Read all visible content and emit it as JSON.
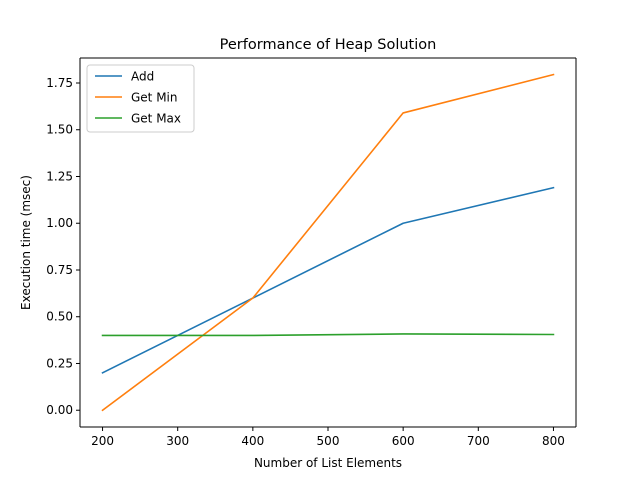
{
  "chart_data": {
    "type": "line",
    "title": "Performance of Heap Solution",
    "xlabel": "Number of List Elements",
    "ylabel": "Execution time (msec)",
    "x": [
      200,
      400,
      600,
      800
    ],
    "xlim": [
      170,
      830
    ],
    "ylim": [
      -0.0897,
      1.8837
    ],
    "xticks": [
      200,
      300,
      400,
      500,
      600,
      700,
      800
    ],
    "xtick_labels": [
      "200",
      "300",
      "400",
      "500",
      "600",
      "700",
      "800"
    ],
    "yticks": [
      0.0,
      0.25,
      0.5,
      0.75,
      1.0,
      1.25,
      1.5,
      1.75
    ],
    "ytick_labels": [
      "0.00",
      "0.25",
      "0.50",
      "0.75",
      "1.00",
      "1.25",
      "1.50",
      "1.75"
    ],
    "grid": false,
    "legend_position": "top-left",
    "series": [
      {
        "name": "Add",
        "color": "#1f77b4",
        "values": [
          0.2,
          0.6,
          1.0,
          1.19
        ]
      },
      {
        "name": "Get Min",
        "color": "#ff7f0e",
        "values": [
          0.0,
          0.6,
          1.59,
          1.795
        ]
      },
      {
        "name": "Get Max",
        "color": "#2ca02c",
        "values": [
          0.4,
          0.4,
          0.408,
          0.405
        ]
      }
    ]
  }
}
